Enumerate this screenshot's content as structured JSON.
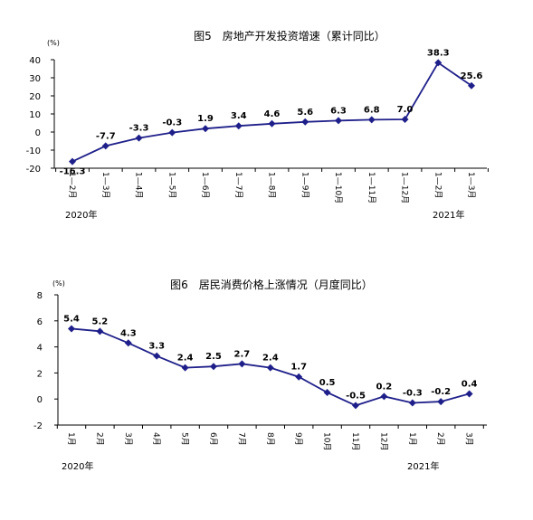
{
  "chart_data": [
    {
      "type": "line",
      "title": "图5　房地产开发投资增速（累计同比）",
      "unit_label": "(%)",
      "categories": [
        "1—2月",
        "1—3月",
        "1—4月",
        "1—5月",
        "1—6月",
        "1—7月",
        "1—8月",
        "1—9月",
        "1—10月",
        "1—11月",
        "1—12月",
        "1—2月",
        "1—3月"
      ],
      "values": [
        -16.3,
        -7.7,
        -3.3,
        -0.3,
        1.9,
        3.4,
        4.6,
        5.6,
        6.3,
        6.8,
        7.0,
        38.3,
        25.6
      ],
      "data_labels": [
        "-16.3",
        "-7.7",
        "-3.3",
        "-0.3",
        "1.9",
        "3.4",
        "4.6",
        "5.6",
        "6.3",
        "6.8",
        "7.0",
        "38.3",
        "25.6"
      ],
      "yticks": [
        "40",
        "30",
        "20",
        "10",
        "0",
        "-10",
        "-20"
      ],
      "ylim": [
        -20,
        40
      ],
      "year_labels": [
        "2020年",
        "2021年"
      ],
      "line_color": "#1f1f8a",
      "grid": false
    },
    {
      "type": "line",
      "title": "图6　居民消费价格上涨情况（月度同比）",
      "unit_label": "(%)",
      "categories": [
        "1月",
        "2月",
        "3月",
        "4月",
        "5月",
        "6月",
        "7月",
        "8月",
        "9月",
        "10月",
        "11月",
        "12月",
        "1月",
        "2月",
        "3月"
      ],
      "values": [
        5.4,
        5.2,
        4.3,
        3.3,
        2.4,
        2.5,
        2.7,
        2.4,
        1.7,
        0.5,
        -0.5,
        0.2,
        -0.3,
        -0.2,
        0.4
      ],
      "data_labels": [
        "5.4",
        "5.2",
        "4.3",
        "3.3",
        "2.4",
        "2.5",
        "2.7",
        "2.4",
        "1.7",
        "0.5",
        "-0.5",
        "0.2",
        "-0.3",
        "-0.2",
        "0.4"
      ],
      "yticks": [
        "8",
        "6",
        "4",
        "2",
        "0",
        "-2"
      ],
      "ylim": [
        -2,
        8
      ],
      "year_labels": [
        "2020年",
        "2021年"
      ],
      "line_color": "#1f1f8a",
      "grid": false
    }
  ]
}
